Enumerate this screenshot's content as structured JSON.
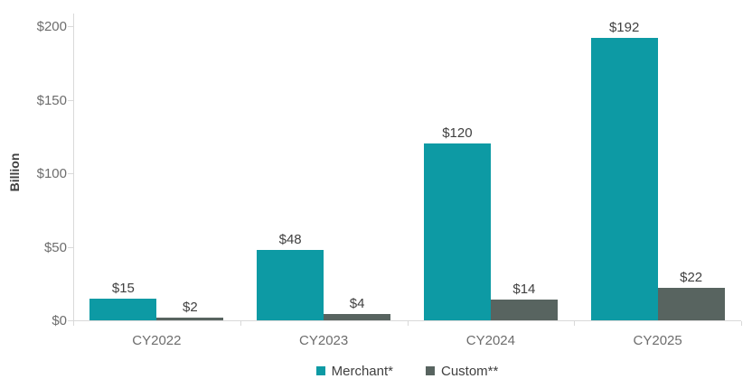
{
  "chart_data": {
    "type": "bar",
    "title": "",
    "xlabel": "",
    "ylabel": "Billion",
    "categories": [
      "CY2022",
      "CY2023",
      "CY2024",
      "CY2025"
    ],
    "series": [
      {
        "name": "Merchant*",
        "values": [
          15,
          48,
          120,
          192
        ],
        "labels": [
          "$15",
          "$48",
          "$120",
          "$192"
        ],
        "color": "#0d9aa4"
      },
      {
        "name": "Custom**",
        "values": [
          2,
          4,
          14,
          22
        ],
        "labels": [
          "$2",
          "$4",
          "$14",
          "$22"
        ],
        "color": "#586460"
      }
    ],
    "y_axis": {
      "max": 200,
      "ticks": [
        {
          "label": "$0",
          "value": 0
        },
        {
          "label": "$50",
          "value": 50
        },
        {
          "label": "$100",
          "value": 100
        },
        {
          "label": "$150",
          "value": 150
        },
        {
          "label": "$200",
          "value": 200
        }
      ]
    },
    "ylim": [
      0,
      200
    ],
    "grid": false,
    "legend_position": "bottom"
  },
  "colors": {
    "axis_line": "#d9d9d9",
    "tick_label": "#6d6d6d",
    "value_label": "#404040",
    "category_label": "#6d6d6d",
    "background": "#ffffff",
    "merchant": "#0d9aa4",
    "custom": "#586460"
  }
}
